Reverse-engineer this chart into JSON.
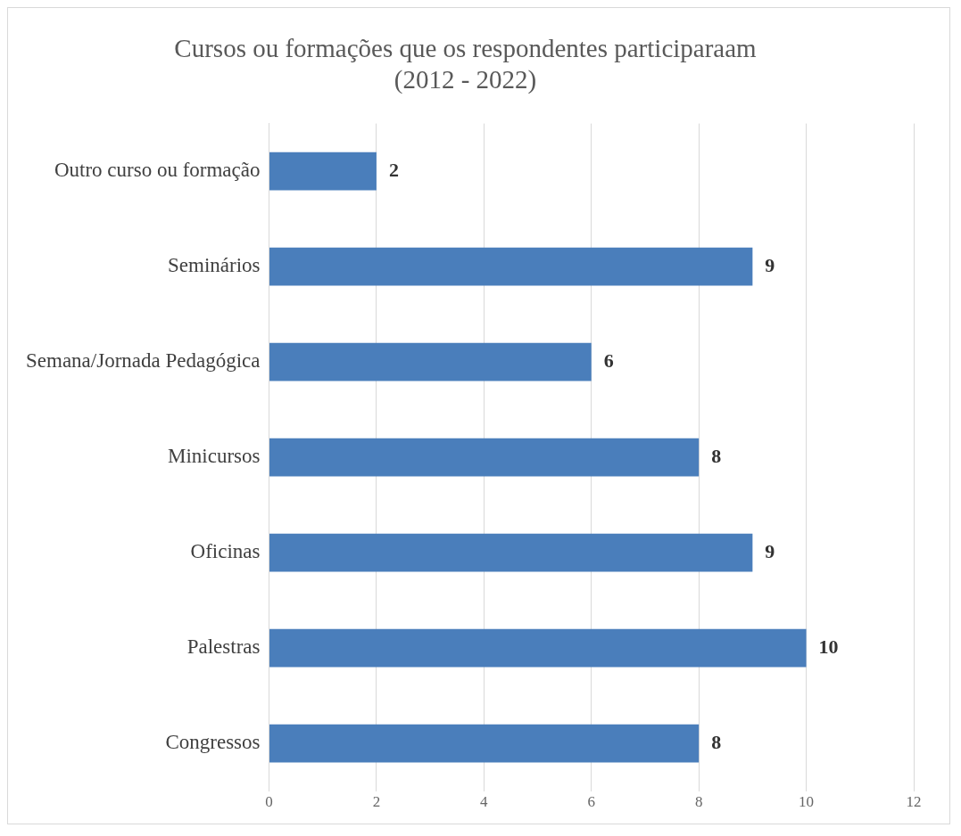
{
  "chart_data": {
    "type": "bar",
    "orientation": "horizontal",
    "title": "Cursos ou formações que os respondentes participaraam\n(2012 - 2022)",
    "categories": [
      "Outro curso ou formação",
      "Seminários",
      "Semana/Jornada Pedagógica",
      "Minicursos",
      "Oficinas",
      "Palestras",
      "Congressos"
    ],
    "values": [
      2,
      9,
      6,
      8,
      9,
      10,
      8
    ],
    "color": "#4a7ebb",
    "xlim": [
      0,
      12
    ],
    "xticks": [
      0,
      2,
      4,
      6,
      8,
      10,
      12
    ],
    "grid": "x",
    "data_labels": true
  }
}
